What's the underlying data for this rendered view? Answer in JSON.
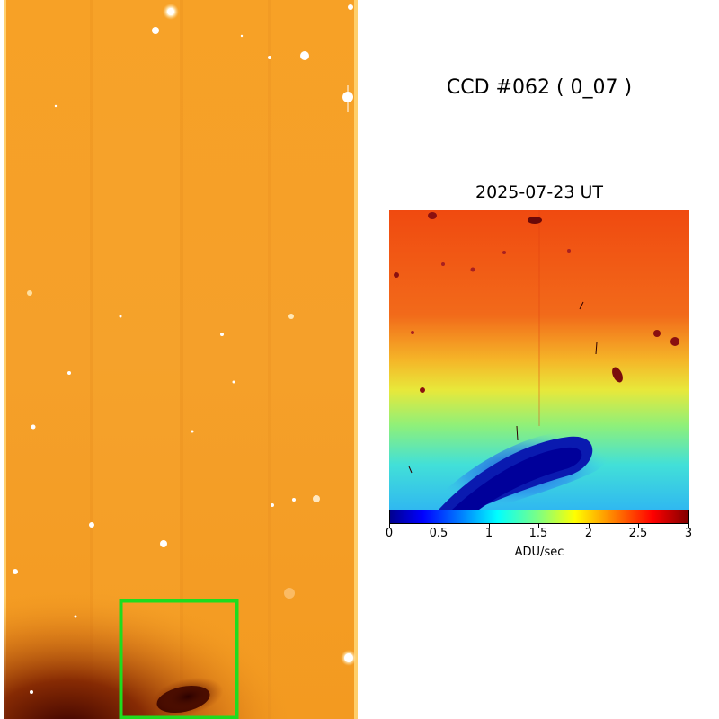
{
  "ccd_label": "CCD #062 ( 0_07 )",
  "observation_date": "2025-07-23 UT",
  "colorbar": {
    "unit": "ADU/sec",
    "ticks": [
      "0",
      "0.5",
      "1",
      "1.5",
      "2",
      "2.5",
      "3"
    ],
    "range": [
      0,
      3
    ],
    "colormap": "jet"
  },
  "colors": {
    "zoom_box": "#1edc1e",
    "background": "#ffffff",
    "ccd_base": "#f39a1e"
  }
}
